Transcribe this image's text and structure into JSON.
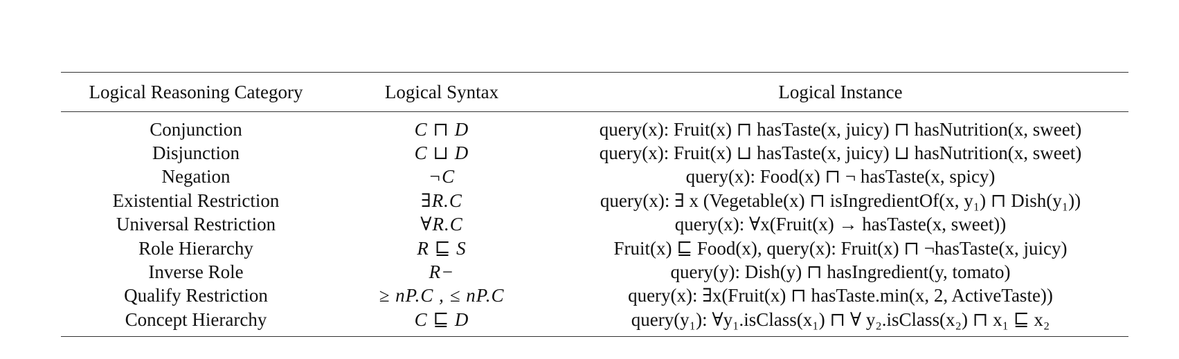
{
  "table": {
    "headers": [
      "Logical Reasoning Category",
      "Logical Syntax",
      "Logical Instance"
    ],
    "rows": [
      {
        "category": "Conjunction",
        "syntax": "C ⊓ D",
        "instance": "query(x): Fruit(x) ⊓ hasTaste(x, juicy) ⊓ hasNutrition(x, sweet)"
      },
      {
        "category": "Disjunction",
        "syntax": "C ⊔ D",
        "instance": "query(x): Fruit(x) ⊔ hasTaste(x, juicy) ⊔ hasNutrition(x, sweet)"
      },
      {
        "category": "Negation",
        "syntax": "¬C",
        "instance": "query(x): Food(x) ⊓ ¬ hasTaste(x, spicy)"
      },
      {
        "category": "Existential Restriction",
        "syntax": "∃R.C",
        "instance": "query(x): ∃ x (Vegetable(x) ⊓ isIngredientOf(x, y₁) ⊓ Dish(y₁))"
      },
      {
        "category": "Universal Restriction",
        "syntax": "∀R.C",
        "instance": "query(x): ∀x(Fruit(x) → hasTaste(x, sweet))"
      },
      {
        "category": "Role Hierarchy",
        "syntax": "R ⊑ S",
        "instance": "Fruit(x) ⊑ Food(x), query(x): Fruit(x) ⊓ ¬hasTaste(x, juicy)"
      },
      {
        "category": "Inverse Role",
        "syntax": "R−",
        "instance": "query(y): Dish(y) ⊓ hasIngredient(y, tomato)"
      },
      {
        "category": "Qualify Restriction",
        "syntax": "≥ nP.C , ≤ nP.C",
        "instance": "query(x): ∃x(Fruit(x) ⊓ hasTaste.min(x, 2, ActiveTaste))"
      },
      {
        "category": "Concept Hierarchy",
        "syntax": "C ⊑ D",
        "instance": "query(y₁): ∀y₁.isClass(x₁) ⊓ ∀ y₂.isClass(x₂) ⊓ x₁ ⊑ x₂"
      }
    ]
  }
}
